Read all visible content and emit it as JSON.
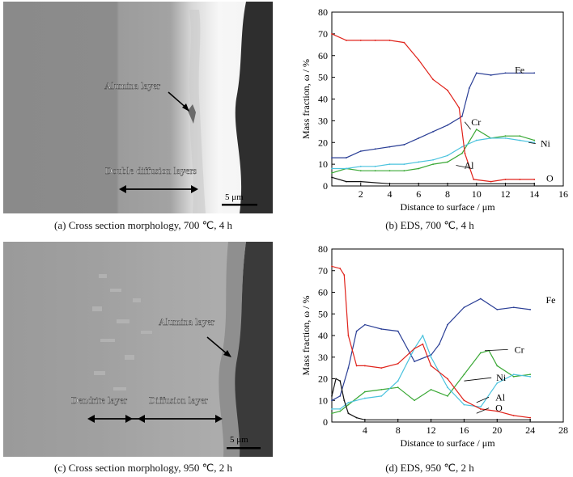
{
  "panels": {
    "a": {
      "caption": "(a) Cross section morphology, 700 ℃, 4 h",
      "labels": {
        "alumina": "Alumina layer",
        "double": "Double diffusion layers"
      },
      "scalebar": "5 μm"
    },
    "b": {
      "caption": "(b) EDS, 700 ℃, 4 h"
    },
    "c": {
      "caption": "(c) Cross section morphology, 950 ℃, 2 h",
      "labels": {
        "alumina": "Alumina layer",
        "dendrite": "Dendrite layer",
        "diffusion": "Diffusion layer"
      },
      "scalebar": "5 μm"
    },
    "d": {
      "caption": "(d) EDS, 950 ℃, 2 h"
    }
  },
  "colors": {
    "Fe": "#2b3f96",
    "Cr": "#3aa835",
    "Ni": "#4cc3de",
    "Al": "#e0231b",
    "O": "#111111"
  },
  "chart_data": [
    {
      "type": "line",
      "xlabel": "Distance to surface / μm",
      "ylabel": "Mass fraction, ω / %",
      "xlim": [
        0,
        16
      ],
      "ylim": [
        0,
        80
      ],
      "xticks": [
        2,
        4,
        6,
        8,
        10,
        12,
        14,
        16
      ],
      "yticks": [
        0,
        10,
        20,
        30,
        40,
        50,
        60,
        70,
        80
      ],
      "series": [
        {
          "name": "Fe",
          "x": [
            0,
            1,
            2,
            3,
            4,
            5,
            6,
            7,
            8,
            9,
            9.5,
            10,
            11,
            12,
            13,
            14
          ],
          "y": [
            13,
            13,
            16,
            17,
            18,
            19,
            22,
            25,
            28,
            32,
            45,
            52,
            51,
            52,
            52,
            52
          ]
        },
        {
          "name": "Cr",
          "x": [
            0,
            1,
            2,
            3,
            4,
            5,
            6,
            7,
            8,
            9,
            10,
            11,
            12,
            13,
            14
          ],
          "y": [
            6,
            8,
            7,
            7,
            7,
            7,
            8,
            10,
            11,
            15,
            26,
            22,
            23,
            23,
            21
          ]
        },
        {
          "name": "Ni",
          "x": [
            0,
            1,
            2,
            3,
            4,
            5,
            6,
            7,
            8,
            9,
            10,
            11,
            12,
            13,
            14
          ],
          "y": [
            8,
            8,
            9,
            9,
            10,
            10,
            11,
            12,
            14,
            18,
            21,
            22,
            22,
            21,
            20
          ]
        },
        {
          "name": "Al",
          "x": [
            0,
            1,
            2,
            3,
            4,
            5,
            6,
            7,
            8,
            8.8,
            9.2,
            9.8,
            11,
            12,
            13,
            14
          ],
          "y": [
            70,
            67,
            67,
            67,
            67,
            66,
            58,
            49,
            44,
            36,
            15,
            3,
            2,
            3,
            3,
            3
          ]
        },
        {
          "name": "O",
          "x": [
            0,
            1,
            2,
            4,
            6,
            8,
            10,
            12,
            14
          ],
          "y": [
            4,
            2,
            2,
            1,
            1,
            1,
            1,
            1,
            1
          ]
        }
      ]
    },
    {
      "type": "line",
      "xlabel": "Distance to surface / μm",
      "ylabel": "Mass fraction, ω / %",
      "xlim": [
        0,
        28
      ],
      "ylim": [
        0,
        80
      ],
      "xticks": [
        4,
        8,
        12,
        16,
        20,
        24,
        28
      ],
      "yticks": [
        0,
        10,
        20,
        30,
        40,
        50,
        60,
        70,
        80
      ],
      "series": [
        {
          "name": "Fe",
          "x": [
            0,
            1,
            2,
            3,
            4,
            6,
            8,
            10,
            12,
            13,
            14,
            16,
            18,
            20,
            22,
            24
          ],
          "y": [
            10,
            12,
            25,
            42,
            45,
            43,
            42,
            28,
            31,
            36,
            45,
            53,
            57,
            52,
            53,
            52
          ]
        },
        {
          "name": "Cr",
          "x": [
            0,
            1,
            2,
            4,
            6,
            8,
            10,
            12,
            14,
            16,
            18,
            19,
            20,
            22,
            24
          ],
          "y": [
            4,
            5,
            8,
            14,
            15,
            16,
            10,
            15,
            12,
            22,
            32,
            33,
            26,
            21,
            22
          ]
        },
        {
          "name": "Ni",
          "x": [
            0,
            1,
            2,
            4,
            6,
            8,
            10,
            11,
            12,
            14,
            16,
            18,
            20,
            22,
            24
          ],
          "y": [
            6,
            6,
            9,
            11,
            12,
            19,
            34,
            40,
            30,
            16,
            8,
            7,
            18,
            22,
            21
          ]
        },
        {
          "name": "Al",
          "x": [
            0,
            1,
            1.5,
            2,
            3,
            4,
            6,
            8,
            10,
            11,
            12,
            14,
            16,
            18,
            20,
            22,
            24
          ],
          "y": [
            72,
            71,
            68,
            40,
            26,
            26,
            25,
            27,
            34,
            36,
            26,
            20,
            10,
            6,
            5,
            3,
            2
          ]
        },
        {
          "name": "O",
          "x": [
            0,
            0.5,
            1,
            1.5,
            2,
            3,
            4,
            8,
            12,
            16,
            20,
            24
          ],
          "y": [
            12,
            20,
            19,
            10,
            4,
            2,
            1,
            1,
            1,
            1,
            1,
            1
          ]
        }
      ]
    }
  ]
}
